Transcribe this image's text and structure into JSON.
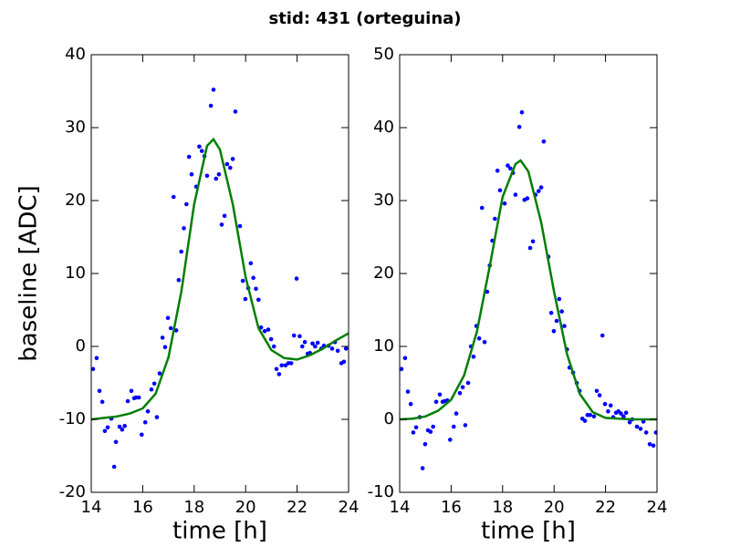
{
  "title": "stid: 431 (orteguina)",
  "chart_data": [
    {
      "type": "scatter",
      "xlabel": "time [h]",
      "ylabel": "baseline [ADC]",
      "xlim": [
        14,
        24
      ],
      "xticks": [
        14,
        16,
        18,
        20,
        22,
        24
      ],
      "ylim": [
        -20,
        40
      ],
      "yticks": [
        -20,
        -10,
        0,
        10,
        20,
        30,
        40
      ],
      "grid": false,
      "series": [
        {
          "mode": "markers",
          "color": "#0000ff",
          "x": [
            14.07,
            14.21,
            14.32,
            14.43,
            14.53,
            14.64,
            14.78,
            14.89,
            14.96,
            15.1,
            15.2,
            15.3,
            15.42,
            15.56,
            15.67,
            15.74,
            15.85,
            15.96,
            16.1,
            16.2,
            16.34,
            16.45,
            16.55,
            16.66,
            16.77,
            16.87,
            16.98,
            17.09,
            17.2,
            17.3,
            17.4,
            17.5,
            17.6,
            17.7,
            17.8,
            17.9,
            18.08,
            18.2,
            18.3,
            18.4,
            18.5,
            18.65,
            18.75,
            18.85,
            18.96,
            19.07,
            19.18,
            19.28,
            19.4,
            19.5,
            19.6,
            19.78,
            19.89,
            19.99,
            20.1,
            20.2,
            20.3,
            20.4,
            20.5,
            20.6,
            20.74,
            20.88,
            20.99,
            21.1,
            21.2,
            21.3,
            21.4,
            21.55,
            21.66,
            21.77,
            21.88,
            21.98,
            22.1,
            22.2,
            22.3,
            22.41,
            22.5,
            22.6,
            22.7,
            22.8,
            22.94,
            23.04,
            23.22,
            23.36,
            23.47,
            23.58,
            23.72,
            23.82,
            23.9
          ],
          "values": [
            -3.1,
            -1.6,
            -6.1,
            -7.6,
            -11.6,
            -11.1,
            -9.9,
            -16.5,
            -13.1,
            -11,
            -11.4,
            -10.9,
            -7.5,
            -6.1,
            -7.1,
            -7,
            -7,
            -12.1,
            -10.4,
            -8.9,
            -5.9,
            -5.1,
            -9.7,
            -3.7,
            1.2,
            -0.1,
            3.9,
            2.5,
            20.5,
            2.2,
            9.1,
            13,
            16.2,
            19.5,
            26,
            23.6,
            21.9,
            27.4,
            26.8,
            26.1,
            23.4,
            33,
            35.2,
            23,
            23.6,
            16.7,
            17.9,
            25,
            24.5,
            25.7,
            32.2,
            16.5,
            9,
            6.5,
            8,
            11.4,
            9.4,
            7.9,
            6.4,
            2.6,
            2.1,
            2.3,
            1,
            0,
            -3.1,
            -3.8,
            -2.6,
            -2.6,
            -2.3,
            -2.3,
            1.5,
            9.3,
            1.4,
            0,
            0.6,
            -1,
            -0.9,
            0.4,
            0,
            0.5,
            -0.3,
            0.1,
            0.1,
            -0.3,
            0.6,
            -0.6,
            -2.3,
            -2.1,
            -0.3
          ]
        },
        {
          "mode": "line",
          "color": "#007f00",
          "x": [
            14,
            14.5,
            15,
            15.5,
            16,
            16.5,
            17,
            17.5,
            18,
            18.5,
            18.75,
            19,
            19.5,
            20,
            20.5,
            21,
            21.5,
            22,
            22.5,
            23,
            23.5,
            24
          ],
          "values": [
            -10,
            -9.8,
            -9.6,
            -9.2,
            -8.5,
            -6.5,
            -1.5,
            7.5,
            19.5,
            27.5,
            28.4,
            27,
            19.5,
            9.5,
            2.5,
            -0.5,
            -1.6,
            -1.8,
            -1.2,
            -0.3,
            0.8,
            1.8
          ]
        }
      ]
    },
    {
      "type": "scatter",
      "xlabel": "time [h]",
      "xlim": [
        14,
        24
      ],
      "xticks": [
        14,
        16,
        18,
        20,
        22,
        24
      ],
      "ylim": [
        -10,
        50
      ],
      "yticks": [
        -10,
        0,
        10,
        20,
        30,
        40,
        50
      ],
      "grid": false,
      "series": [
        {
          "mode": "markers",
          "color": "#0000ff",
          "x": [
            14.07,
            14.21,
            14.32,
            14.43,
            14.53,
            14.64,
            14.78,
            14.89,
            14.99,
            15.1,
            15.2,
            15.3,
            15.42,
            15.56,
            15.67,
            15.74,
            15.85,
            15.96,
            16.1,
            16.2,
            16.34,
            16.45,
            16.55,
            16.66,
            16.77,
            16.87,
            16.98,
            17.09,
            17.2,
            17.3,
            17.4,
            17.5,
            17.6,
            17.7,
            17.8,
            17.9,
            18.08,
            18.2,
            18.3,
            18.4,
            18.5,
            18.65,
            18.75,
            18.85,
            18.96,
            19.07,
            19.18,
            19.28,
            19.4,
            19.5,
            19.6,
            19.78,
            19.89,
            19.99,
            20.1,
            20.2,
            20.3,
            20.4,
            20.5,
            20.6,
            20.74,
            20.88,
            20.99,
            21.1,
            21.2,
            21.3,
            21.4,
            21.55,
            21.66,
            21.77,
            21.88,
            21.98,
            22.1,
            22.2,
            22.3,
            22.41,
            22.5,
            22.6,
            22.7,
            22.8,
            22.94,
            23.04,
            23.22,
            23.36,
            23.47,
            23.58,
            23.72,
            23.86,
            23.96
          ],
          "values": [
            6.9,
            8.4,
            3.8,
            2.1,
            -1.8,
            -1.1,
            0.3,
            -6.7,
            -3.4,
            -1.5,
            -1.7,
            -1,
            2.4,
            3.4,
            2.4,
            2.5,
            2.6,
            -2.8,
            -1,
            0.8,
            3.6,
            4.4,
            -0.8,
            5,
            10,
            8.6,
            12.8,
            11.1,
            29,
            10.6,
            17.5,
            21.1,
            24.5,
            27.5,
            34.1,
            31.4,
            29.6,
            34.8,
            34.4,
            33.8,
            30.8,
            40.1,
            42.1,
            30.1,
            30.3,
            23.5,
            24.4,
            30.8,
            31.3,
            31.8,
            38.1,
            22.3,
            14.6,
            12.1,
            13.5,
            16.5,
            14.8,
            12.8,
            9.6,
            7.1,
            6.4,
            5,
            3.9,
            0.1,
            -0.2,
            0.6,
            0.6,
            0.4,
            3.9,
            3.3,
            11.5,
            2.1,
            1.1,
            1.9,
            0.3,
            0.9,
            1.1,
            0.8,
            0.4,
            0.9,
            -0.4,
            0,
            -1,
            -1.3,
            -0.3,
            -1.8,
            -3.4,
            -3.6,
            -1.8
          ]
        },
        {
          "mode": "line",
          "color": "#007f00",
          "x": [
            14,
            14.5,
            15,
            15.5,
            16,
            16.5,
            17,
            17.5,
            18,
            18.5,
            18.7,
            19,
            19.5,
            20,
            20.5,
            21,
            21.5,
            22,
            23,
            24
          ],
          "values": [
            0,
            0.1,
            0.4,
            1.2,
            2.7,
            6,
            12,
            21,
            30.5,
            35,
            35.5,
            34,
            27,
            17.5,
            9,
            3.5,
            1,
            0.2,
            0,
            0
          ]
        }
      ]
    }
  ]
}
